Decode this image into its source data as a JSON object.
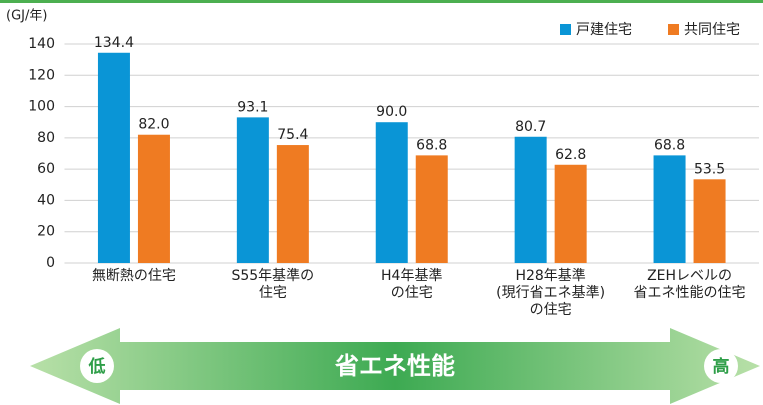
{
  "chart_data": {
    "type": "bar",
    "y_label": "(GJ/年)",
    "categories": [
      "無断熱の住宅",
      "S55年基準の\n住宅",
      "H4年基準\nの住宅",
      "H28年基準\n(現行省エネ基準)\nの住宅",
      "ZEHレベルの\n省エネ性能の住宅"
    ],
    "series": [
      {
        "name": "戸建住宅",
        "color": "#0a95d6",
        "values": [
          134.4,
          93.1,
          90.0,
          80.7,
          68.8
        ],
        "value_labels": [
          "134.4",
          "93.1",
          "90.0",
          "80.7",
          "68.8"
        ]
      },
      {
        "name": "共同住宅",
        "color": "#ef7b22",
        "values": [
          82.0,
          75.4,
          68.8,
          62.8,
          53.5
        ],
        "value_labels": [
          "82.0",
          "75.4",
          "68.8",
          "62.8",
          "53.5"
        ]
      }
    ],
    "ylim": [
      0,
      140
    ],
    "yticks": [
      0,
      20,
      40,
      60,
      80,
      100,
      120,
      140
    ],
    "grid": true,
    "legend": "top-right"
  },
  "arrow": {
    "label": "省エネ性能",
    "low": "低",
    "high": "高"
  }
}
